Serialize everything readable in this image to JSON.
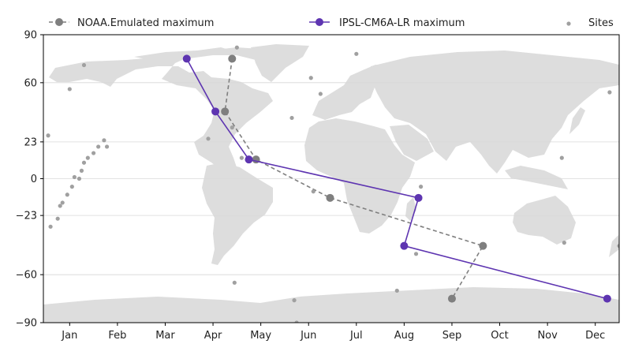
{
  "chart_data": {
    "type": "scatter",
    "title": "",
    "xlabel": "",
    "ylabel": "",
    "xlim": [
      0.45,
      12.5
    ],
    "ylim": [
      -90,
      90
    ],
    "yticks": [
      90,
      60,
      23,
      0,
      -23,
      -60,
      -90
    ],
    "xticks": [
      {
        "value": 1,
        "label": "Jan"
      },
      {
        "value": 2,
        "label": "Feb"
      },
      {
        "value": 3,
        "label": "Mar"
      },
      {
        "value": 4,
        "label": "Apr"
      },
      {
        "value": 5,
        "label": "May"
      },
      {
        "value": 6,
        "label": "Jun"
      },
      {
        "value": 7,
        "label": "Jul"
      },
      {
        "value": 8,
        "label": "Aug"
      },
      {
        "value": 9,
        "label": "Sep"
      },
      {
        "value": 10,
        "label": "Oct"
      },
      {
        "value": 11,
        "label": "Nov"
      },
      {
        "value": 12,
        "label": "Dec"
      }
    ],
    "grid": "horizontal",
    "background": "world land map",
    "legend_position": "top",
    "series": [
      {
        "name": "NOAA.Emulated maximum",
        "style": "dashed",
        "color": "#7f7f7f",
        "x": [
          4.4,
          4.25,
          4.9,
          6.45,
          9.65,
          9.0
        ],
        "y": [
          75,
          42,
          12,
          -12,
          -42,
          -75
        ]
      },
      {
        "name": "IPSL-CM6A-LR maximum",
        "style": "solid",
        "color": "#5e35b1",
        "x": [
          3.45,
          4.05,
          4.75,
          8.3,
          8.0,
          12.25
        ],
        "y": [
          75,
          42,
          12,
          -12,
          -42,
          -75
        ]
      },
      {
        "name": "Sites",
        "style": "points",
        "color": "#a0a0a0",
        "x": [
          4.5,
          0.55,
          0.6,
          0.75,
          0.8,
          0.85,
          0.95,
          1.05,
          1.1,
          1.2,
          1.25,
          1.3,
          1.38,
          1.5,
          1.6,
          1.72,
          1.78,
          1.3,
          1.0,
          4.4,
          3.9,
          4.6,
          6.25,
          5.65,
          6.05,
          7.0,
          6.1,
          8.35,
          8.25,
          7.85,
          11.3,
          11.35,
          12.3,
          12.5,
          4.45,
          5.7,
          5.75
        ],
        "y": [
          82,
          27,
          -30,
          -25,
          -17,
          -15,
          -10,
          -5,
          1,
          0,
          5,
          10,
          13,
          16,
          20,
          24,
          20,
          71,
          56,
          32,
          25,
          13,
          53,
          38,
          63,
          78,
          -8,
          -5,
          -47,
          -70,
          13,
          -40,
          54,
          -42,
          -65,
          -76,
          -90
        ]
      }
    ]
  }
}
